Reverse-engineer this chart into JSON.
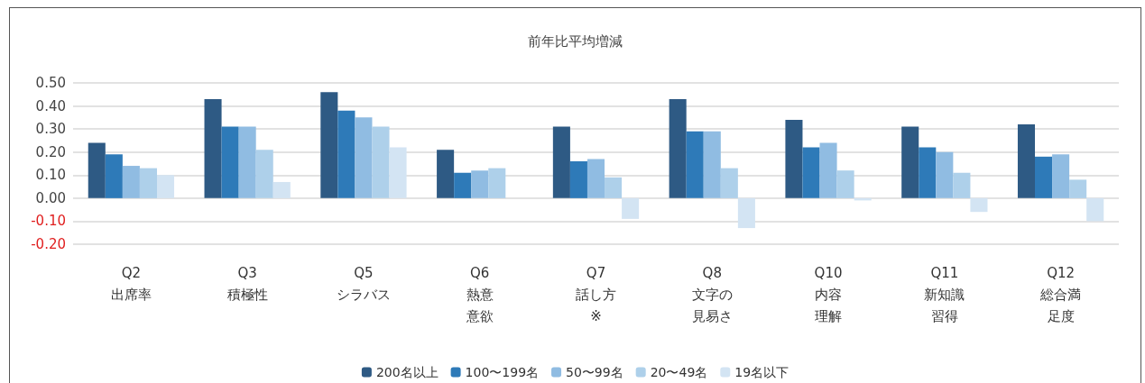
{
  "chart_data": {
    "type": "bar",
    "title": "前年比平均増減",
    "categories": [
      "Q2\n出席率",
      "Q3\n積極性",
      "Q5\nシラバス",
      "Q6\n熱意意欲",
      "Q7\n話し方\n※",
      "Q8\n文字の見易さ",
      "Q10\n内容理解",
      "Q11\n新知識習得",
      "Q12\n総合満足度"
    ],
    "series": [
      {
        "name": "200名以上",
        "color": "#2e5a84",
        "values": [
          0.24,
          0.43,
          0.46,
          0.21,
          0.31,
          0.43,
          0.34,
          0.31,
          0.32
        ]
      },
      {
        "name": "100〜199名",
        "color": "#2e7ab8",
        "values": [
          0.19,
          0.31,
          0.38,
          0.11,
          0.16,
          0.29,
          0.22,
          0.22,
          0.18
        ]
      },
      {
        "name": "50〜99名",
        "color": "#90bce2",
        "values": [
          0.14,
          0.31,
          0.35,
          0.12,
          0.17,
          0.29,
          0.24,
          0.2,
          0.19
        ]
      },
      {
        "name": "20〜49名",
        "color": "#aed0ea",
        "values": [
          0.13,
          0.21,
          0.31,
          0.13,
          0.09,
          0.13,
          0.12,
          0.11,
          0.08
        ]
      },
      {
        "name": "19名以下",
        "color": "#d3e4f3",
        "values": [
          0.1,
          0.07,
          0.22,
          null,
          -0.09,
          -0.13,
          -0.01,
          -0.06,
          -0.1
        ]
      }
    ],
    "ylim": [
      -0.2,
      0.5
    ],
    "yticks": [
      {
        "value": -0.2,
        "label": "-0.20"
      },
      {
        "value": -0.1,
        "label": "-0.10"
      },
      {
        "value": 0,
        "label": "0.00"
      },
      {
        "value": 0.1,
        "label": "0.10"
      },
      {
        "value": 0.2,
        "label": "0.20"
      },
      {
        "value": 0.3,
        "label": "0.30"
      },
      {
        "value": 0.4,
        "label": "0.40"
      },
      {
        "value": 0.5,
        "label": "0.50"
      }
    ],
    "grid": "y",
    "legend": "bottom"
  }
}
